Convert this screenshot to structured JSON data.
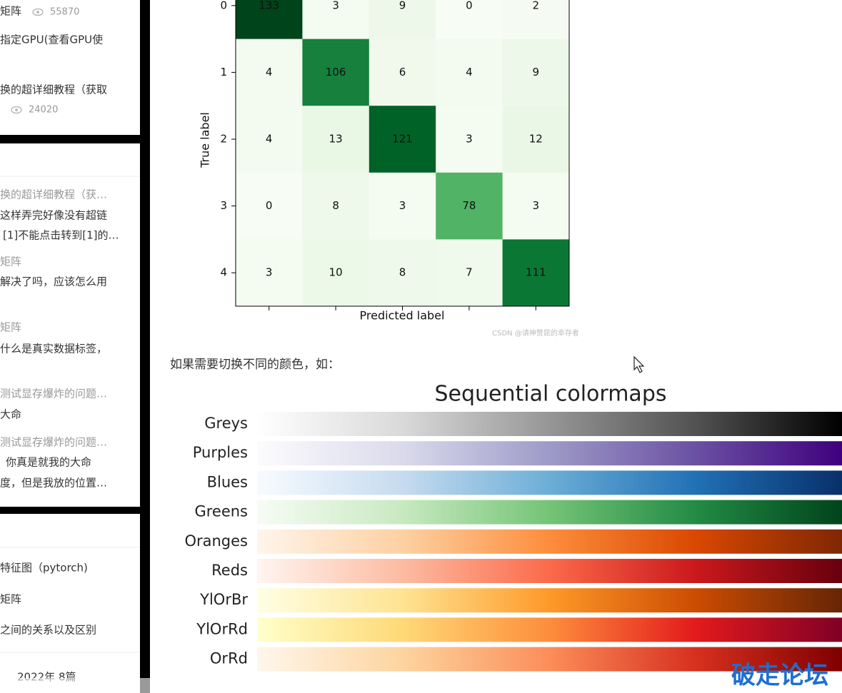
{
  "sidebar": {
    "hot": [
      {
        "text": "矩阵",
        "views": "55870"
      },
      {
        "text": "指定GPU(查看GPU使"
      },
      {
        "text": "换的超详细教程（获取",
        "views": "24020"
      }
    ],
    "comments": [
      {
        "title": "换的超详细教程（获…",
        "lines": [
          "这样弄完好像没有超链",
          "[1]不能点击转到[1]的…"
        ]
      },
      {
        "title": "矩阵",
        "lines": [
          "解决了吗，应该怎么用"
        ]
      },
      {
        "title": "矩阵",
        "lines": [
          "什么是真实数据标签，"
        ]
      },
      {
        "title": "测试显存爆炸的问题…",
        "lines": [
          "大命"
        ]
      },
      {
        "title": "测试显存爆炸的问题…",
        "lines": [
          "你真是就我的大命",
          "度，但是我放的位置…"
        ]
      }
    ],
    "recent": [
      "特征图（pytorch)",
      "矩阵",
      "之间的关系以及区别"
    ],
    "archive": "2022年  8篇"
  },
  "confusion_matrix": {
    "matrix": [
      [
        133,
        3,
        9,
        0,
        2
      ],
      [
        4,
        106,
        6,
        4,
        9
      ],
      [
        4,
        13,
        121,
        3,
        12
      ],
      [
        0,
        8,
        3,
        78,
        3
      ],
      [
        3,
        10,
        8,
        7,
        111
      ]
    ],
    "row_labels": [
      "0",
      "1",
      "2",
      "3",
      "4"
    ],
    "xlabel": "Predicted label",
    "ylabel": "True label",
    "colors": [
      "#f7fcf5",
      "#e5f5e0",
      "#c7e9c0",
      "#a1d99b",
      "#74c476",
      "#41ab5d",
      "#238b45",
      "#006d2c",
      "#00441b"
    ],
    "watermark": "CSDN @请神赞昆的幸存者"
  },
  "paragraph": "如果需要切换不同的颜色，如：",
  "colormaps": {
    "title": "Sequential colormaps",
    "maps": [
      {
        "name": "Greys",
        "colors": [
          "#ffffff",
          "#d9d9d9",
          "#969696",
          "#525252",
          "#000000"
        ]
      },
      {
        "name": "Purples",
        "colors": [
          "#fcfbfd",
          "#dadaeb",
          "#9e9ac8",
          "#6a51a3",
          "#3f007d"
        ]
      },
      {
        "name": "Blues",
        "colors": [
          "#f7fbff",
          "#c6dbef",
          "#6baed6",
          "#2171b5",
          "#08306b"
        ]
      },
      {
        "name": "Greens",
        "colors": [
          "#f7fcf5",
          "#c7e9c0",
          "#74c476",
          "#238b45",
          "#00441b"
        ]
      },
      {
        "name": "Oranges",
        "colors": [
          "#fff5eb",
          "#fdd0a2",
          "#fd8d3c",
          "#d94801",
          "#7f2704"
        ]
      },
      {
        "name": "Reds",
        "colors": [
          "#fff5f0",
          "#fcbba1",
          "#fb6a4a",
          "#cb181d",
          "#67000d"
        ]
      },
      {
        "name": "YlOrBr",
        "colors": [
          "#ffffe5",
          "#fee391",
          "#fe9929",
          "#cc4c02",
          "#662506"
        ]
      },
      {
        "name": "YlOrRd",
        "colors": [
          "#ffffcc",
          "#fed976",
          "#fd8d3c",
          "#e31a1c",
          "#800026"
        ]
      },
      {
        "name": "OrRd",
        "colors": [
          "#fff7ec",
          "#fdd49e",
          "#fc8d59",
          "#d7301f",
          "#7f0000"
        ]
      }
    ]
  },
  "watermark": "破走论坛"
}
